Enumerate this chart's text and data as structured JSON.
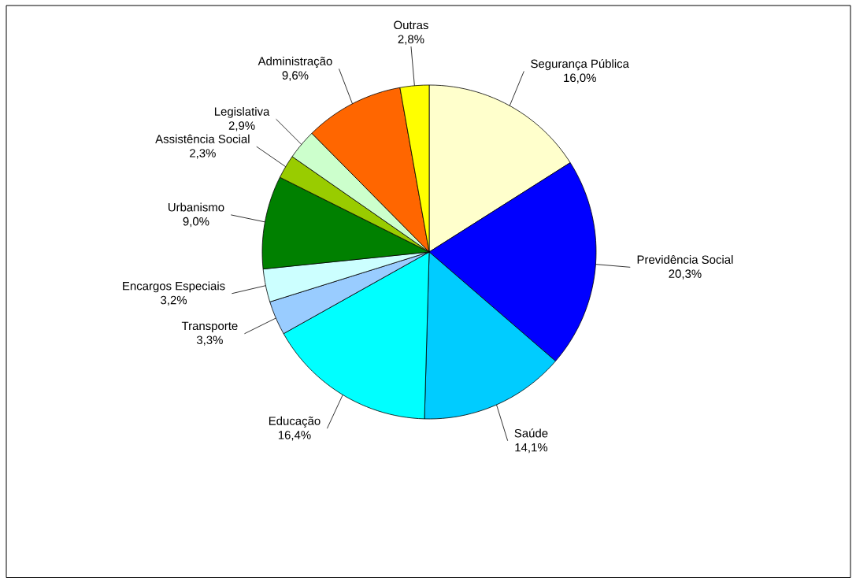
{
  "chart_data": {
    "type": "pie",
    "categories": [
      "Segurança Pública",
      "Previdência Social",
      "Saúde",
      "Educação",
      "Transporte",
      "Encargos Especiais",
      "Urbanismo",
      "Assistência Social",
      "Legislativa",
      "Administração",
      "Outras"
    ],
    "values": [
      16.0,
      20.3,
      14.1,
      16.4,
      3.3,
      3.2,
      9.0,
      2.3,
      2.9,
      9.6,
      2.8
    ],
    "value_labels": [
      "16,0%",
      "20,3%",
      "14,1%",
      "16,4%",
      "3,3%",
      "3,2%",
      "9,0%",
      "2,3%",
      "2,9%",
      "9,6%",
      "2,8%"
    ],
    "colors": [
      "#ffffcc",
      "#0000ff",
      "#00ccff",
      "#00ffff",
      "#99ccff",
      "#ccffff",
      "#008000",
      "#99cc00",
      "#ccffcc",
      "#ff6600",
      "#ffff00"
    ]
  }
}
